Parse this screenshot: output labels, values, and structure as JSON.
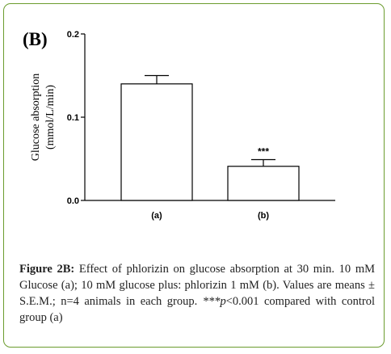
{
  "figure": {
    "panel_label": "(B)",
    "caption_label": "Figure 2B:",
    "caption_text": " Effect of phlorizin on glucose absorption at 30 min. 10 mM Glucose (a); 10 mM glucose plus: phlorizin 1 mM (b). Values are means ± S.E.M.; n=4 animals in each group. ",
    "caption_sig": "***p",
    "caption_tail": "<0.001 compared with control group (a)"
  },
  "chart_data": {
    "type": "bar",
    "categories": [
      "(a)",
      "(b)"
    ],
    "values": [
      0.14,
      0.041
    ],
    "errors": [
      0.01,
      0.008
    ],
    "annotations": [
      "",
      "***"
    ],
    "ylabel": "Glucose absorption",
    "ylabel_unit": "(mmol/L/min)",
    "ylim": [
      0,
      0.2
    ],
    "yticks": [
      0.0,
      0.1,
      0.2
    ],
    "ytick_labels": [
      "0.0",
      "0.1",
      "0.2"
    ],
    "grid": false
  },
  "colors": {
    "frame_border": "#6b9c2e",
    "bar_fill": "#ffffff",
    "bar_stroke": "#000000"
  }
}
